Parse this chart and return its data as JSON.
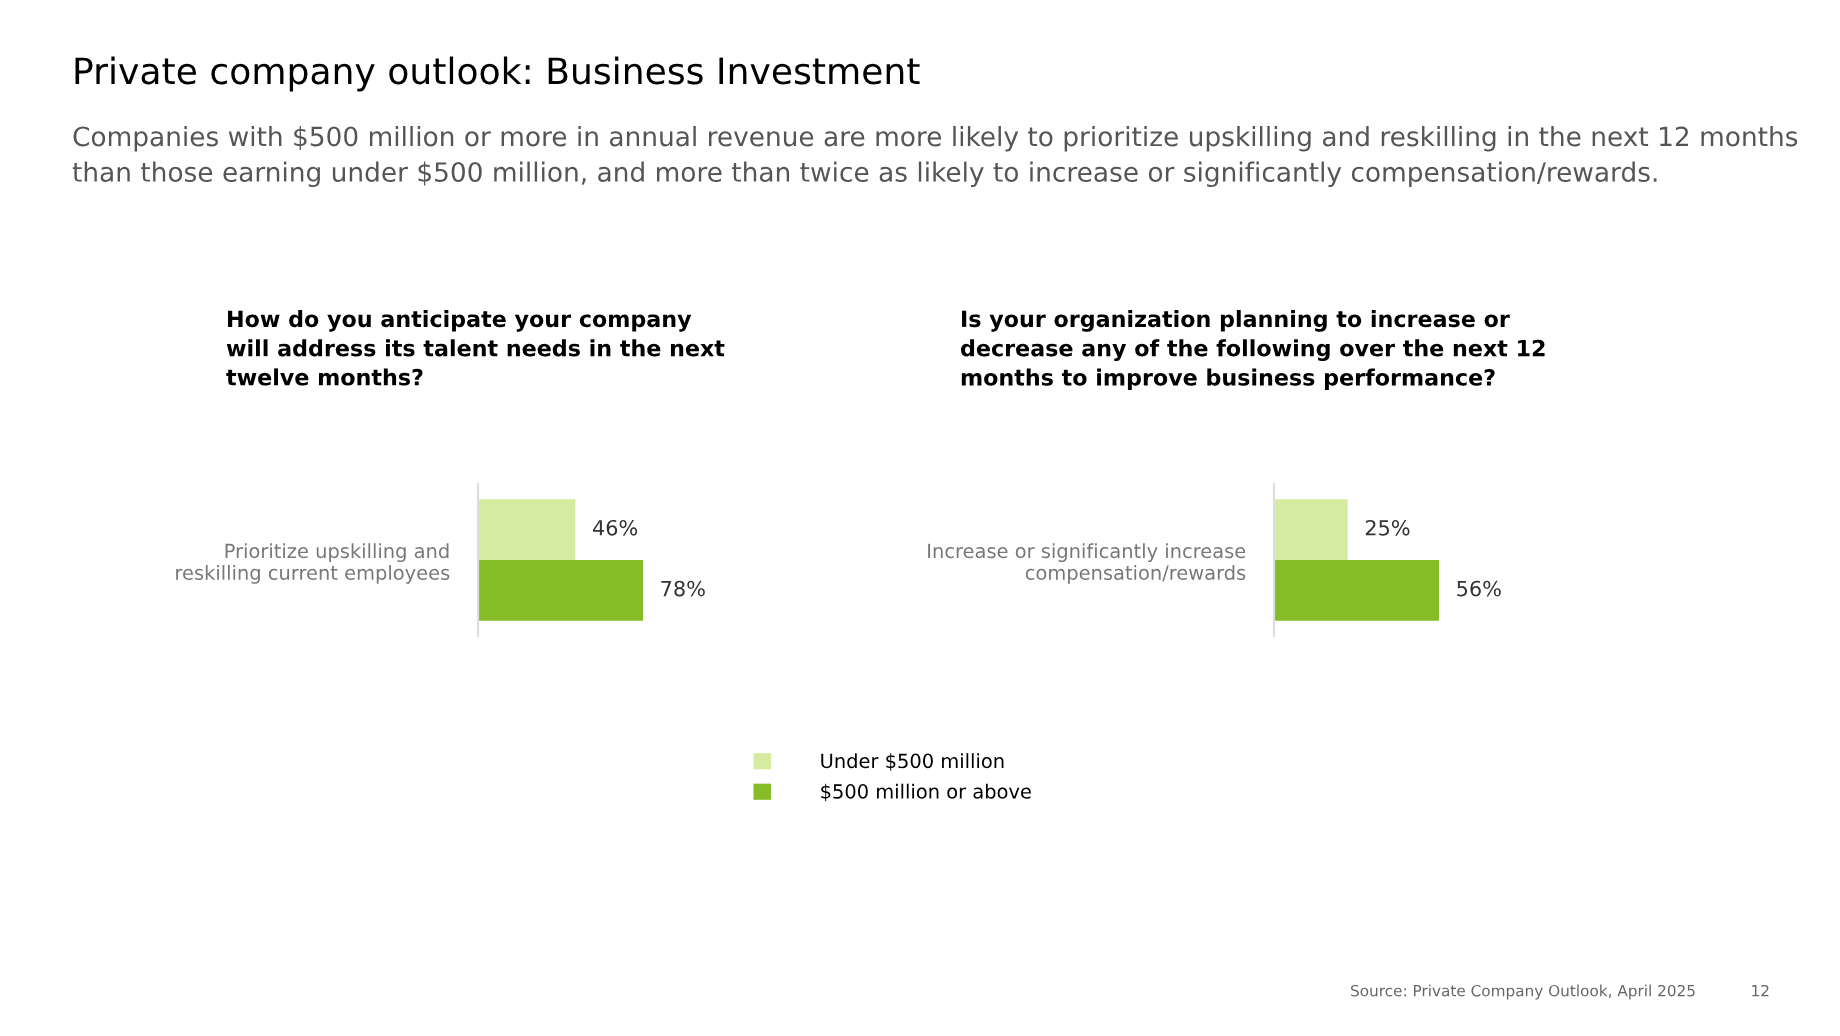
{
  "chart_data": [
    {
      "type": "other",
      "title": "Private company outlook: Business Investment",
      "subtitle": "Companies with $500 million or more in annual revenue are more likely to prioritize upskilling and reskilling in the next 12 months than those earning under $500 million, and more than twice as likely to increase or significantly compensation/rewards.",
      "annotations": [
        "Source: Private Company Outlook, April 2025",
        "12"
      ]
    },
    {
      "type": "bar",
      "orientation": "horizontal",
      "title": "How do you anticipate your company\nwill address its talent needs in the next\ntwelve months?",
      "categories": [
        "Prioritize upskilling and\nreskilling current employees"
      ],
      "legend": "bottom",
      "series": [
        {
          "name": "Under $500 million",
          "color": "#d4eba0",
          "values": [
            46
          ],
          "value_labels": [
            "46%"
          ]
        },
        {
          "name": "$500 million or above",
          "color": "#86bc25",
          "values": [
            78
          ],
          "value_labels": [
            "78%"
          ]
        }
      ]
    },
    {
      "type": "bar",
      "orientation": "horizontal",
      "title": "Is your organization planning to increase or\ndecrease any of the following over the next 12\nmonths to improve business performance?",
      "categories": [
        "Increase or significantly increase\ncompensation/rewards"
      ],
      "series": [
        {
          "color": "#d4eba0",
          "values": [
            25
          ],
          "value_labels": [
            "25%"
          ]
        },
        {
          "color": "#86bc25",
          "values": [
            56
          ],
          "value_labels": [
            "56%"
          ]
        }
      ]
    }
  ]
}
